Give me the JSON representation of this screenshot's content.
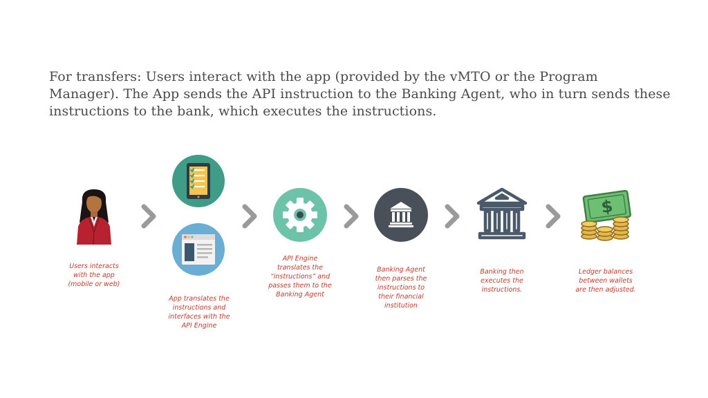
{
  "title": "For transfers: Users interact with the app (provided by the vMTO or the Program Manager). The App sends the API instruction to the Banking Agent, who in turn sends these instructions to the bank, which executes the instructions.",
  "steps": {
    "user": {
      "caption": "Users interacts with the app (mobile or web)",
      "icon": "user-icon"
    },
    "app": {
      "caption": "App translates the instructions and interfaces with the API Engine",
      "icon": "browser-window-icon"
    },
    "tablet": {
      "icon": "tablet-checklist-icon"
    },
    "api": {
      "caption": "API Engine translates the “instructions” and passes them to the Banking Agent",
      "icon": "gear-icon"
    },
    "agent": {
      "caption": "Banking Agent then parses the instructions to their financial institution",
      "icon": "bank-icon"
    },
    "bank": {
      "caption": "Banking then executes the instructions.",
      "icon": "bank-building-icon"
    },
    "ledger": {
      "caption": "Ledger balances between wallets are then adjusted.",
      "icon": "money-coins-icon"
    }
  },
  "colors": {
    "caption": "#c0392b",
    "title": "#4a4a4a",
    "arrow": "#9a9a9a",
    "tablet_circle": "#3f9c86",
    "app_circle": "#6aaed6",
    "gear_circle": "#6cc3a8",
    "bank_circle": "#4a5059",
    "bank_outline": "#4a5a6a",
    "money": "#6dbf73",
    "coin": "#e6b84a"
  }
}
